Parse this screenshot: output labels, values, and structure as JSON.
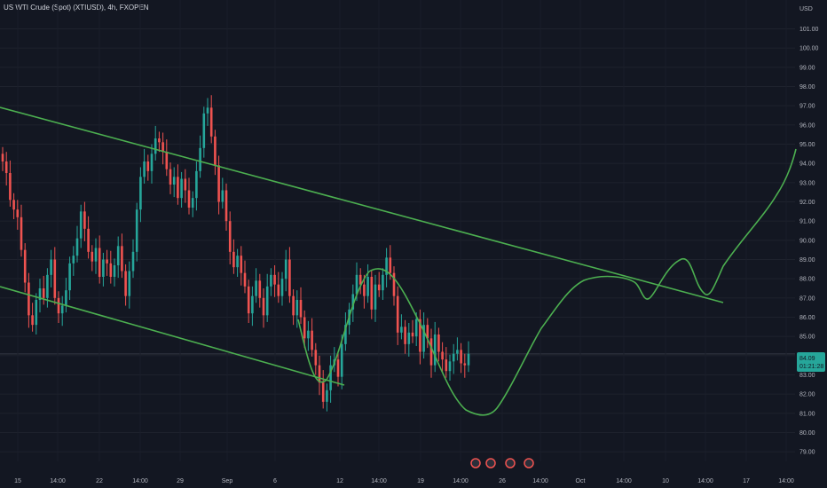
{
  "header": {
    "symbol_title": "US WTI Crude (Spot) (XTIUSD), 4h, FXOPEN"
  },
  "price_axis": {
    "currency": "USD",
    "last_price": "84.09",
    "countdown": "01:21:28",
    "tag_color": "#26a69a"
  },
  "chart_data": {
    "type": "candlestick",
    "title": "US WTI Crude (Spot) (XTIUSD), 4h, FXOPEN",
    "ylabel": "USD",
    "ylim": [
      78.5,
      102.5
    ],
    "y_ticks": [
      "79.00",
      "80.00",
      "81.00",
      "82.00",
      "83.00",
      "84.00",
      "85.00",
      "86.00",
      "87.00",
      "88.00",
      "89.00",
      "90.00",
      "91.00",
      "92.00",
      "93.00",
      "94.00",
      "95.00",
      "96.00",
      "97.00",
      "98.00",
      "99.00",
      "100.00",
      "101.00"
    ],
    "x_ticks": [
      "15",
      "14:00",
      "22",
      "14:00",
      "29",
      "Sep",
      "6",
      "12",
      "14:00",
      "19",
      "14:00",
      "26",
      "14:00",
      "Oct",
      "14:00",
      "10",
      "14:00",
      "17",
      "14:00"
    ],
    "up_color": "#26a69a",
    "down_color": "#ef5350",
    "line_color": "#4caf50",
    "candles_close": [
      94.1,
      93.5,
      92.1,
      91.6,
      91.2,
      89.5,
      87.8,
      86.1,
      85.6,
      86.9,
      87.5,
      87.0,
      88.2,
      89.0,
      87.0,
      86.2,
      86.6,
      87.4,
      88.8,
      89.2,
      90.1,
      91.5,
      90.6,
      89.4,
      88.9,
      89.6,
      88.1,
      89.0,
      88.8,
      88.1,
      88.7,
      89.7,
      88.4,
      87.1,
      88.4,
      89.4,
      91.6,
      93.3,
      94.1,
      93.6,
      94.5,
      95.3,
      95.1,
      94.6,
      93.7,
      92.9,
      93.3,
      92.2,
      93.2,
      92.6,
      91.7,
      92.2,
      93.6,
      94.8,
      96.6,
      96.9,
      95.4,
      93.9,
      92.0,
      92.6,
      91.0,
      89.4,
      88.6,
      89.2,
      88.3,
      87.6,
      86.2,
      87.1,
      87.9,
      87.0,
      86.1,
      87.6,
      88.2,
      87.7,
      87.1,
      88.0,
      89.0,
      87.1,
      86.1,
      86.9,
      86.0,
      84.9,
      85.3,
      84.3,
      83.5,
      82.6,
      81.6,
      82.2,
      83.5,
      83.8,
      82.9,
      84.6,
      85.6,
      86.4,
      87.2,
      88.2,
      87.7,
      87.1,
      88.1,
      86.4,
      87.7,
      87.4,
      88.2,
      89.1,
      88.3,
      87.1,
      85.2,
      85.5,
      84.6,
      85.2,
      85.0,
      85.9,
      84.2,
      85.6,
      84.9,
      83.5,
      85.1,
      84.2,
      83.8,
      83.2,
      83.7,
      84.1,
      84.3,
      83.6,
      83.5,
      84.1
    ]
  }
}
